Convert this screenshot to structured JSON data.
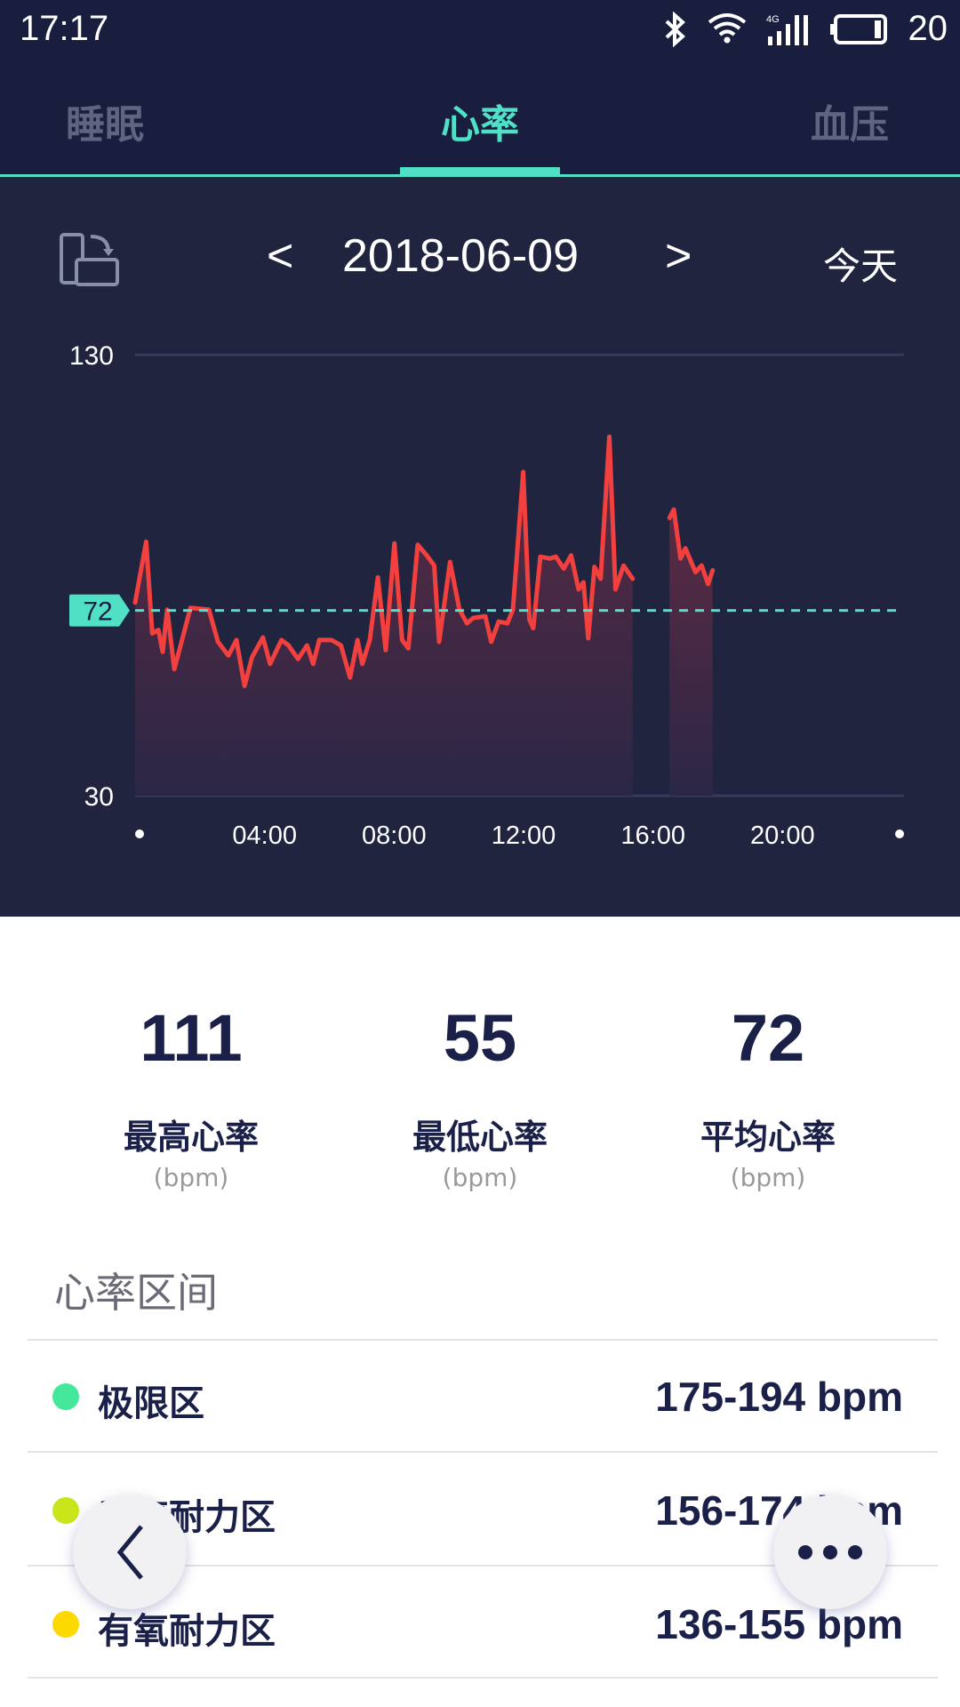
{
  "status_bar": {
    "time": "17:17",
    "battery": "20",
    "network": "4G",
    "icons": [
      "bluetooth-icon",
      "wifi-icon",
      "signal-icon",
      "battery-icon"
    ]
  },
  "tabs": [
    {
      "label": "睡眠",
      "active": false
    },
    {
      "label": "心率",
      "active": true
    },
    {
      "label": "血压",
      "active": false
    }
  ],
  "date_nav": {
    "prev": "<",
    "date": "2018-06-09",
    "next": ">",
    "today": "今天",
    "rotate_icon": "rotate-screen-icon"
  },
  "colors": {
    "accent": "#4fe0c6",
    "line": "#f2403f",
    "background": "#1a1e3e",
    "zone_extreme": "#45e89a",
    "zone_anaerobic": "#c8e61a",
    "zone_aerobic": "#fcd900"
  },
  "chart_data": {
    "type": "area",
    "ylim": [
      30,
      130
    ],
    "yticks": [
      "130",
      "30"
    ],
    "xlim": [
      0,
      24
    ],
    "xticks": [
      {
        "t": 4,
        "label": "04:00"
      },
      {
        "t": 8,
        "label": "08:00"
      },
      {
        "t": 12,
        "label": "12:00"
      },
      {
        "t": 16,
        "label": "16:00"
      },
      {
        "t": 20,
        "label": "20:00"
      }
    ],
    "average": {
      "value": 72,
      "label": "72"
    },
    "grid": true,
    "segments": [
      [
        [
          0,
          73.8
        ],
        [
          0.34,
          87.6
        ],
        [
          0.53,
          66.8
        ],
        [
          0.72,
          67.6
        ],
        [
          0.85,
          62.6
        ],
        [
          0.99,
          72.2
        ],
        [
          1.21,
          58.7
        ],
        [
          1.71,
          72.6
        ],
        [
          2.28,
          72.2
        ],
        [
          2.56,
          64.9
        ],
        [
          2.88,
          61.8
        ],
        [
          3.13,
          65.3
        ],
        [
          3.38,
          54.9
        ],
        [
          3.61,
          61.4
        ],
        [
          3.95,
          65.9
        ],
        [
          4.17,
          59.9
        ],
        [
          4.52,
          65.3
        ],
        [
          4.74,
          64.1
        ],
        [
          5.03,
          61.0
        ],
        [
          5.31,
          64.1
        ],
        [
          5.5,
          59.9
        ],
        [
          5.69,
          65.3
        ],
        [
          6.07,
          65.3
        ],
        [
          6.36,
          64.1
        ],
        [
          6.64,
          56.8
        ],
        [
          6.87,
          65.3
        ],
        [
          7.02,
          59.9
        ],
        [
          7.25,
          65.3
        ],
        [
          7.5,
          79.5
        ],
        [
          7.74,
          63.0
        ],
        [
          8.01,
          87.2
        ],
        [
          8.25,
          65.3
        ],
        [
          8.44,
          63.4
        ],
        [
          8.73,
          86.9
        ],
        [
          9.01,
          84.5
        ],
        [
          9.24,
          82.2
        ],
        [
          9.39,
          64.9
        ],
        [
          9.73,
          83.0
        ],
        [
          10.02,
          72.2
        ],
        [
          10.25,
          69.1
        ],
        [
          10.44,
          70.3
        ],
        [
          10.82,
          70.7
        ],
        [
          11.0,
          64.9
        ],
        [
          11.23,
          69.5
        ],
        [
          11.5,
          69.1
        ],
        [
          11.67,
          72.2
        ],
        [
          11.99,
          103.4
        ],
        [
          12.18,
          69.9
        ],
        [
          12.3,
          68.0
        ],
        [
          12.52,
          84.2
        ],
        [
          12.81,
          83.8
        ],
        [
          13.0,
          84.2
        ],
        [
          13.24,
          81.5
        ],
        [
          13.47,
          84.5
        ],
        [
          13.7,
          76.8
        ],
        [
          13.85,
          78.4
        ],
        [
          14.0,
          65.7
        ],
        [
          14.19,
          81.9
        ],
        [
          14.38,
          79.2
        ],
        [
          14.65,
          111.4
        ],
        [
          14.84,
          76.8
        ],
        [
          15.09,
          82.2
        ],
        [
          15.37,
          79.2
        ]
      ],
      [
        [
          16.51,
          93.0
        ],
        [
          16.64,
          94.9
        ],
        [
          16.85,
          83.8
        ],
        [
          17.0,
          86.1
        ],
        [
          17.31,
          80.7
        ],
        [
          17.5,
          82.2
        ],
        [
          17.7,
          78.0
        ],
        [
          17.84,
          81.1
        ]
      ]
    ]
  },
  "stats": [
    {
      "value": "111",
      "label": "最高心率",
      "unit": "(bpm)"
    },
    {
      "value": "55",
      "label": "最低心率",
      "unit": "(bpm)"
    },
    {
      "value": "72",
      "label": "平均心率",
      "unit": "(bpm)"
    }
  ],
  "zones_title": "心率区间",
  "zones": [
    {
      "label": "极限区",
      "range": "175-194 bpm",
      "color": "#45e89a"
    },
    {
      "label": "无氧耐力区",
      "range": "156-174 bpm",
      "color": "#c8e61a"
    },
    {
      "label": "有氧耐力区",
      "range": "136-155 bpm",
      "color": "#fcd900"
    }
  ]
}
